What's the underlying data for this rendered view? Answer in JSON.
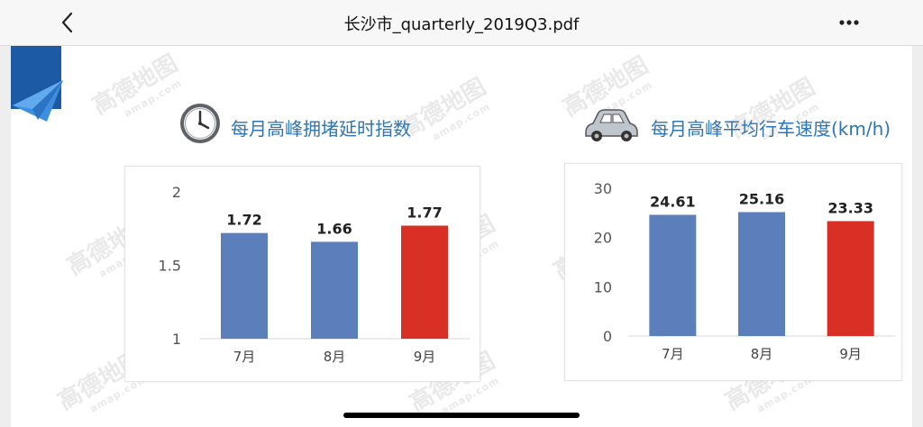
{
  "header": {
    "title": "长沙市_quarterly_2019Q3.pdf",
    "back_icon": "chevron-left-icon",
    "more_icon": "more-horizontal-icon"
  },
  "watermark": {
    "brand": "高德地图",
    "site": "amap.com"
  },
  "colors": {
    "bar_blue": "#5b7fba",
    "bar_red": "#d93025",
    "title_blue": "#2e75b6",
    "ribbon": "#1c5aa6"
  },
  "chart_data": [
    {
      "type": "bar",
      "title": "每月高峰拥堵延时指数",
      "icon": "clock-icon",
      "categories": [
        "7月",
        "8月",
        "9月"
      ],
      "values": [
        1.72,
        1.66,
        1.77
      ],
      "value_labels": [
        "1.72",
        "1.66",
        "1.77"
      ],
      "bar_colors": [
        "#5b7fba",
        "#5b7fba",
        "#d93025"
      ],
      "ylim": [
        1,
        2
      ],
      "yticks": [
        1,
        1.5,
        2
      ],
      "ytick_labels": [
        "1",
        "1.5",
        "2"
      ],
      "xlabel": "",
      "ylabel": "",
      "grid": false
    },
    {
      "type": "bar",
      "title": "每月高峰平均行车速度(km/h)",
      "icon": "car-icon",
      "categories": [
        "7月",
        "8月",
        "9月"
      ],
      "values": [
        24.61,
        25.16,
        23.33
      ],
      "value_labels": [
        "24.61",
        "25.16",
        "23.33"
      ],
      "bar_colors": [
        "#5b7fba",
        "#5b7fba",
        "#d93025"
      ],
      "ylim": [
        0,
        30
      ],
      "yticks": [
        0,
        10,
        20,
        30
      ],
      "ytick_labels": [
        "0",
        "10",
        "20",
        "30"
      ],
      "xlabel": "",
      "ylabel": "",
      "grid": false
    }
  ]
}
